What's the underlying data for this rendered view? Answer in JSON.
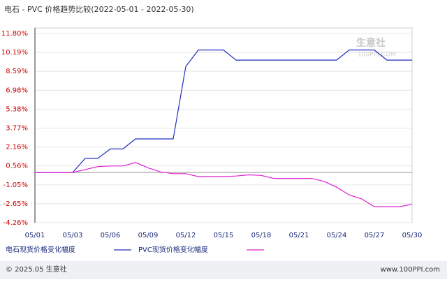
{
  "chart_data": {
    "type": "line",
    "title": "电石 - PVC 价格趋势比较(2022-05-01 - 2022-05-30)",
    "watermark": [
      "生意社",
      "100PPI.COM"
    ],
    "categories": [
      "05/01",
      null,
      null,
      "05/03",
      null,
      null,
      "05/06",
      null,
      null,
      "05/09",
      null,
      null,
      "05/12",
      null,
      null,
      "05/15",
      null,
      null,
      "05/18",
      null,
      null,
      "05/21",
      null,
      null,
      "05/24",
      null,
      null,
      "05/27",
      null,
      null,
      "05/30"
    ],
    "series": [
      {
        "name": "电石现货价格变化幅度",
        "color": "#1f2fbf",
        "values": [
          0,
          0,
          0,
          0,
          1.2,
          1.2,
          2.0,
          2.0,
          2.85,
          2.85,
          2.85,
          2.85,
          9.0,
          10.4,
          10.4,
          10.4,
          9.54,
          9.54,
          9.54,
          9.54,
          9.54,
          9.54,
          9.54,
          9.54,
          9.54,
          10.4,
          10.4,
          10.4,
          9.54,
          9.54,
          9.54
        ]
      },
      {
        "name": "PVC现货价格变化幅度",
        "color": "#e020d0",
        "values": [
          0,
          0,
          0,
          0,
          0.25,
          0.5,
          0.55,
          0.55,
          0.85,
          0.4,
          0.05,
          -0.1,
          -0.1,
          -0.35,
          -0.35,
          -0.35,
          -0.3,
          -0.2,
          -0.25,
          -0.5,
          -0.5,
          -0.5,
          -0.5,
          -0.75,
          -1.25,
          -1.9,
          -2.25,
          -2.9,
          -2.9,
          -2.9,
          -2.7
        ]
      }
    ],
    "ylim": [
      -4.26,
      11.8
    ],
    "yticks": [
      {
        "value": 11.8,
        "label": "11.80%"
      },
      {
        "value": 10.19,
        "label": "10.19%"
      },
      {
        "value": 8.59,
        "label": "8.59%"
      },
      {
        "value": 6.98,
        "label": "6.98%"
      },
      {
        "value": 5.38,
        "label": "5.38%"
      },
      {
        "value": 3.77,
        "label": "3.77%"
      },
      {
        "value": 2.16,
        "label": "2.16%"
      },
      {
        "value": 0.56,
        "label": "0.56%"
      },
      {
        "value": -1.05,
        "label": "-1.05%"
      },
      {
        "value": -2.65,
        "label": "-2.65%"
      },
      {
        "value": -4.26,
        "label": "-4.26%"
      }
    ],
    "grid": true
  },
  "footer": {
    "left": "© 2025.05 生意社",
    "right": "www.100PPI.com"
  }
}
